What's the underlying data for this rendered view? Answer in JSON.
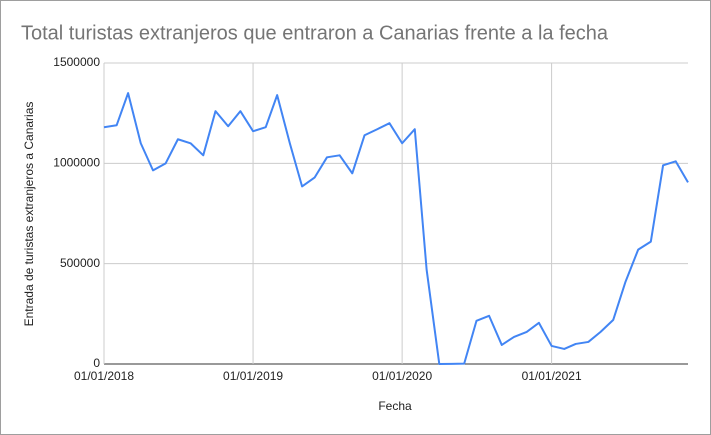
{
  "chart_data": {
    "type": "line",
    "title": "Total turistas extranjeros que entraron a Canarias frente a la fecha",
    "x_label": "Fecha",
    "y_label": "Entrada de turistas extranjeros a Canarias",
    "x": [
      "01/01/2018",
      "01/02/2018",
      "01/03/2018",
      "01/04/2018",
      "01/05/2018",
      "01/06/2018",
      "01/07/2018",
      "01/08/2018",
      "01/09/2018",
      "01/10/2018",
      "01/11/2018",
      "01/12/2018",
      "01/01/2019",
      "01/02/2019",
      "01/03/2019",
      "01/04/2019",
      "01/05/2019",
      "01/06/2019",
      "01/07/2019",
      "01/08/2019",
      "01/09/2019",
      "01/10/2019",
      "01/11/2019",
      "01/12/2019",
      "01/01/2020",
      "01/02/2020",
      "01/03/2020",
      "01/04/2020",
      "01/05/2020",
      "01/06/2020",
      "01/07/2020",
      "01/08/2020",
      "01/09/2020",
      "01/10/2020",
      "01/11/2020",
      "01/12/2020",
      "01/01/2021",
      "01/02/2021",
      "01/03/2021",
      "01/04/2021",
      "01/05/2021",
      "01/06/2021",
      "01/07/2021",
      "01/08/2021",
      "01/09/2021",
      "01/10/2021",
      "01/11/2021",
      "01/12/2021"
    ],
    "series": [
      {
        "name": "Entrada de turistas extranjeros a Canarias",
        "color": "#4285f4",
        "values": [
          1180000,
          1190000,
          1350000,
          1100000,
          965000,
          1000000,
          1120000,
          1100000,
          1040000,
          1260000,
          1185000,
          1260000,
          1160000,
          1180000,
          1340000,
          1100000,
          885000,
          930000,
          1030000,
          1040000,
          950000,
          1140000,
          1170000,
          1200000,
          1100000,
          1170000,
          470000,
          0,
          500,
          2000,
          215000,
          240000,
          95000,
          135000,
          160000,
          205000,
          90000,
          75000,
          100000,
          110000,
          160000,
          220000,
          410000,
          570000,
          610000,
          990000,
          1010000,
          905000
        ]
      }
    ],
    "xlim": [
      "01/01/2018",
      "01/12/2021"
    ],
    "xticks": [
      "01/01/2018",
      "01/01/2019",
      "01/01/2020",
      "01/01/2021"
    ],
    "ylim": [
      0,
      1500000
    ],
    "yticks": [
      0,
      500000,
      1000000,
      1500000
    ],
    "grid": true
  }
}
